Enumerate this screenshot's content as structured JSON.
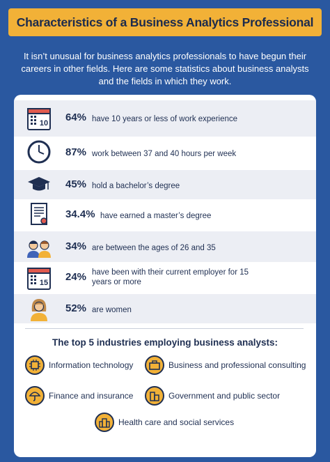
{
  "title": "Characteristics of a Business Analytics Professional",
  "intro": "It isn’t unusual for business analytics professionals to have begun their careers in other fields. Here are some statistics about business analysts and the fields in which they work.",
  "stats": [
    {
      "pct": "64%",
      "text": "have 10 years or less of work experience",
      "icon": "calendar-10-icon"
    },
    {
      "pct": "87%",
      "text": "work between 37 and 40 hours per week",
      "icon": "clock-icon"
    },
    {
      "pct": "45%",
      "text": "hold a bachelor’s degree",
      "icon": "graduation-cap-icon"
    },
    {
      "pct": "34.4%",
      "text": "have earned a master’s degree",
      "icon": "diploma-icon"
    },
    {
      "pct": "34%",
      "text": "are between the ages of 26 and 35",
      "icon": "two-people-icon"
    },
    {
      "pct": "24%",
      "text": "have been with their current employer for 15 years or more",
      "icon": "calendar-15-icon"
    },
    {
      "pct": "52%",
      "text": "are women",
      "icon": "woman-icon"
    }
  ],
  "calendar_numbers": {
    "first": "10",
    "second": "15"
  },
  "industries_title": "The top 5 industries employing business analysts:",
  "industries": [
    {
      "label": "Information technology",
      "icon": "chip-icon"
    },
    {
      "label": "Business and professional consulting",
      "icon": "briefcase-icon"
    },
    {
      "label": "Finance and insurance",
      "icon": "umbrella-icon"
    },
    {
      "label": "Government and public sector",
      "icon": "government-building-icon"
    },
    {
      "label": "Health care and social services",
      "icon": "hospital-icon"
    }
  ],
  "colors": {
    "background": "#2a58a0",
    "accent": "#f2b137",
    "navy": "#1f2f52",
    "shaded_row": "#eceef4"
  }
}
